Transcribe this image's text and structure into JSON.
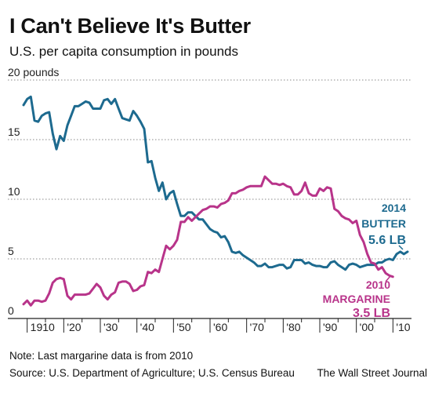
{
  "header": {
    "title": "I Can't Believe It's Butter",
    "subtitle": "U.S. per capita consumption in pounds"
  },
  "footer": {
    "note": "Note: Last margarine data is from 2010",
    "source": "Source: U.S. Department of Agriculture; U.S. Census Bureau",
    "credit": "The Wall Street Journal"
  },
  "colors": {
    "butter": "#1d6a8f",
    "margarine": "#b8348a",
    "grid": "#888888"
  },
  "chart_data": {
    "type": "line",
    "title": "I Can't Believe It's Butter",
    "subtitle": "U.S. per capita consumption in pounds",
    "ylim": [
      0,
      20
    ],
    "xlim": [
      1909,
      2014
    ],
    "y_ticks": [
      {
        "value": 0,
        "label": "0"
      },
      {
        "value": 5,
        "label": "5"
      },
      {
        "value": 10,
        "label": "10"
      },
      {
        "value": 15,
        "label": "15"
      },
      {
        "value": 20,
        "label": "20 pounds"
      }
    ],
    "x_ticks": [
      {
        "value": 1910,
        "label": "1910"
      },
      {
        "value": 1920,
        "label": "'20"
      },
      {
        "value": 1930,
        "label": "'30"
      },
      {
        "value": 1940,
        "label": "'40"
      },
      {
        "value": 1950,
        "label": "'50"
      },
      {
        "value": 1960,
        "label": "'60"
      },
      {
        "value": 1970,
        "label": "'70"
      },
      {
        "value": 1980,
        "label": "'80"
      },
      {
        "value": 1990,
        "label": "'90"
      },
      {
        "value": 2000,
        "label": "'00"
      },
      {
        "value": 2010,
        "label": "'10"
      }
    ],
    "grid": "horizontal dotted",
    "series": [
      {
        "name": "BUTTER",
        "color": "#1d6a8f",
        "points": [
          [
            1909,
            17.9
          ],
          [
            1910,
            18.4
          ],
          [
            1911,
            18.6
          ],
          [
            1912,
            16.6
          ],
          [
            1913,
            16.5
          ],
          [
            1914,
            17.0
          ],
          [
            1915,
            17.2
          ],
          [
            1916,
            17.3
          ],
          [
            1917,
            15.5
          ],
          [
            1918,
            14.2
          ],
          [
            1919,
            15.3
          ],
          [
            1920,
            14.9
          ],
          [
            1921,
            16.2
          ],
          [
            1922,
            17.0
          ],
          [
            1923,
            17.8
          ],
          [
            1924,
            17.8
          ],
          [
            1925,
            18.0
          ],
          [
            1926,
            18.2
          ],
          [
            1927,
            18.1
          ],
          [
            1928,
            17.6
          ],
          [
            1929,
            17.6
          ],
          [
            1930,
            17.6
          ],
          [
            1931,
            18.3
          ],
          [
            1932,
            18.4
          ],
          [
            1933,
            18.0
          ],
          [
            1934,
            18.4
          ],
          [
            1935,
            17.6
          ],
          [
            1936,
            16.8
          ],
          [
            1937,
            16.7
          ],
          [
            1938,
            16.6
          ],
          [
            1939,
            17.4
          ],
          [
            1940,
            17.0
          ],
          [
            1941,
            16.5
          ],
          [
            1942,
            15.9
          ],
          [
            1943,
            13.1
          ],
          [
            1944,
            13.2
          ],
          [
            1945,
            11.8
          ],
          [
            1946,
            10.7
          ],
          [
            1947,
            11.4
          ],
          [
            1948,
            10.0
          ],
          [
            1949,
            10.5
          ],
          [
            1950,
            10.7
          ],
          [
            1951,
            9.6
          ],
          [
            1952,
            8.6
          ],
          [
            1953,
            8.6
          ],
          [
            1954,
            8.9
          ],
          [
            1955,
            8.9
          ],
          [
            1956,
            8.6
          ],
          [
            1957,
            8.3
          ],
          [
            1958,
            8.3
          ],
          [
            1959,
            7.9
          ],
          [
            1960,
            7.5
          ],
          [
            1961,
            7.3
          ],
          [
            1962,
            7.2
          ],
          [
            1963,
            6.8
          ],
          [
            1964,
            6.9
          ],
          [
            1965,
            6.4
          ],
          [
            1966,
            5.6
          ],
          [
            1967,
            5.5
          ],
          [
            1968,
            5.6
          ],
          [
            1969,
            5.3
          ],
          [
            1970,
            5.1
          ],
          [
            1971,
            4.9
          ],
          [
            1972,
            4.7
          ],
          [
            1973,
            4.4
          ],
          [
            1974,
            4.4
          ],
          [
            1975,
            4.6
          ],
          [
            1976,
            4.3
          ],
          [
            1977,
            4.3
          ],
          [
            1978,
            4.4
          ],
          [
            1979,
            4.5
          ],
          [
            1980,
            4.5
          ],
          [
            1981,
            4.2
          ],
          [
            1982,
            4.3
          ],
          [
            1983,
            4.9
          ],
          [
            1984,
            4.9
          ],
          [
            1985,
            4.9
          ],
          [
            1986,
            4.6
          ],
          [
            1987,
            4.7
          ],
          [
            1988,
            4.5
          ],
          [
            1989,
            4.4
          ],
          [
            1990,
            4.4
          ],
          [
            1991,
            4.3
          ],
          [
            1992,
            4.3
          ],
          [
            1993,
            4.7
          ],
          [
            1994,
            4.8
          ],
          [
            1995,
            4.5
          ],
          [
            1996,
            4.3
          ],
          [
            1997,
            4.1
          ],
          [
            1998,
            4.5
          ],
          [
            1999,
            4.6
          ],
          [
            2000,
            4.5
          ],
          [
            2001,
            4.3
          ],
          [
            2002,
            4.4
          ],
          [
            2003,
            4.5
          ],
          [
            2004,
            4.5
          ],
          [
            2005,
            4.5
          ],
          [
            2006,
            4.7
          ],
          [
            2007,
            4.7
          ],
          [
            2008,
            4.9
          ],
          [
            2009,
            5.0
          ],
          [
            2010,
            4.9
          ],
          [
            2011,
            5.4
          ],
          [
            2012,
            5.6
          ],
          [
            2013,
            5.4
          ],
          [
            2014,
            5.6
          ]
        ]
      },
      {
        "name": "MARGARINE",
        "color": "#b8348a",
        "points": [
          [
            1909,
            1.2
          ],
          [
            1910,
            1.5
          ],
          [
            1911,
            1.1
          ],
          [
            1912,
            1.5
          ],
          [
            1913,
            1.5
          ],
          [
            1914,
            1.4
          ],
          [
            1915,
            1.5
          ],
          [
            1916,
            2.1
          ],
          [
            1917,
            3.0
          ],
          [
            1918,
            3.3
          ],
          [
            1919,
            3.4
          ],
          [
            1920,
            3.3
          ],
          [
            1921,
            1.9
          ],
          [
            1922,
            1.6
          ],
          [
            1923,
            2.0
          ],
          [
            1924,
            2.0
          ],
          [
            1925,
            2.0
          ],
          [
            1926,
            2.0
          ],
          [
            1927,
            2.1
          ],
          [
            1928,
            2.5
          ],
          [
            1929,
            2.9
          ],
          [
            1930,
            2.6
          ],
          [
            1931,
            1.9
          ],
          [
            1932,
            1.6
          ],
          [
            1933,
            2.0
          ],
          [
            1934,
            2.2
          ],
          [
            1935,
            3.0
          ],
          [
            1936,
            3.1
          ],
          [
            1937,
            3.1
          ],
          [
            1938,
            2.9
          ],
          [
            1939,
            2.3
          ],
          [
            1940,
            2.4
          ],
          [
            1941,
            2.7
          ],
          [
            1942,
            2.8
          ],
          [
            1943,
            3.9
          ],
          [
            1944,
            3.8
          ],
          [
            1945,
            4.1
          ],
          [
            1946,
            3.9
          ],
          [
            1947,
            5.0
          ],
          [
            1948,
            6.1
          ],
          [
            1949,
            5.8
          ],
          [
            1950,
            6.1
          ],
          [
            1951,
            6.6
          ],
          [
            1952,
            8.1
          ],
          [
            1953,
            8.1
          ],
          [
            1954,
            8.5
          ],
          [
            1955,
            8.2
          ],
          [
            1956,
            8.5
          ],
          [
            1957,
            8.8
          ],
          [
            1958,
            9.1
          ],
          [
            1959,
            9.2
          ],
          [
            1960,
            9.4
          ],
          [
            1961,
            9.4
          ],
          [
            1962,
            9.3
          ],
          [
            1963,
            9.6
          ],
          [
            1964,
            9.7
          ],
          [
            1965,
            9.9
          ],
          [
            1966,
            10.5
          ],
          [
            1967,
            10.5
          ],
          [
            1968,
            10.7
          ],
          [
            1969,
            10.8
          ],
          [
            1970,
            11.0
          ],
          [
            1971,
            11.1
          ],
          [
            1972,
            11.1
          ],
          [
            1973,
            11.1
          ],
          [
            1974,
            11.1
          ],
          [
            1975,
            11.9
          ],
          [
            1976,
            11.6
          ],
          [
            1977,
            11.3
          ],
          [
            1978,
            11.3
          ],
          [
            1979,
            11.2
          ],
          [
            1980,
            11.3
          ],
          [
            1981,
            11.1
          ],
          [
            1982,
            11.0
          ],
          [
            1983,
            10.4
          ],
          [
            1984,
            10.4
          ],
          [
            1985,
            10.7
          ],
          [
            1986,
            11.4
          ],
          [
            1987,
            10.5
          ],
          [
            1988,
            10.3
          ],
          [
            1989,
            10.3
          ],
          [
            1990,
            10.9
          ],
          [
            1991,
            10.7
          ],
          [
            1992,
            11.0
          ],
          [
            1993,
            10.9
          ],
          [
            1994,
            9.2
          ],
          [
            1995,
            9.0
          ],
          [
            1996,
            8.6
          ],
          [
            1997,
            8.4
          ],
          [
            1998,
            8.3
          ],
          [
            1999,
            8.0
          ],
          [
            2000,
            8.2
          ],
          [
            2001,
            7.0
          ],
          [
            2002,
            6.4
          ],
          [
            2003,
            5.4
          ],
          [
            2004,
            4.7
          ],
          [
            2005,
            4.6
          ],
          [
            2006,
            4.1
          ],
          [
            2007,
            4.3
          ],
          [
            2008,
            3.8
          ],
          [
            2009,
            3.6
          ],
          [
            2010,
            3.5
          ]
        ]
      }
    ],
    "annotations": [
      {
        "series": "BUTTER",
        "lines": [
          "2014",
          "BUTTER",
          "5.6 LB"
        ]
      },
      {
        "series": "MARGARINE",
        "lines": [
          "2010",
          "MARGARINE",
          "3.5 LB"
        ]
      }
    ]
  }
}
